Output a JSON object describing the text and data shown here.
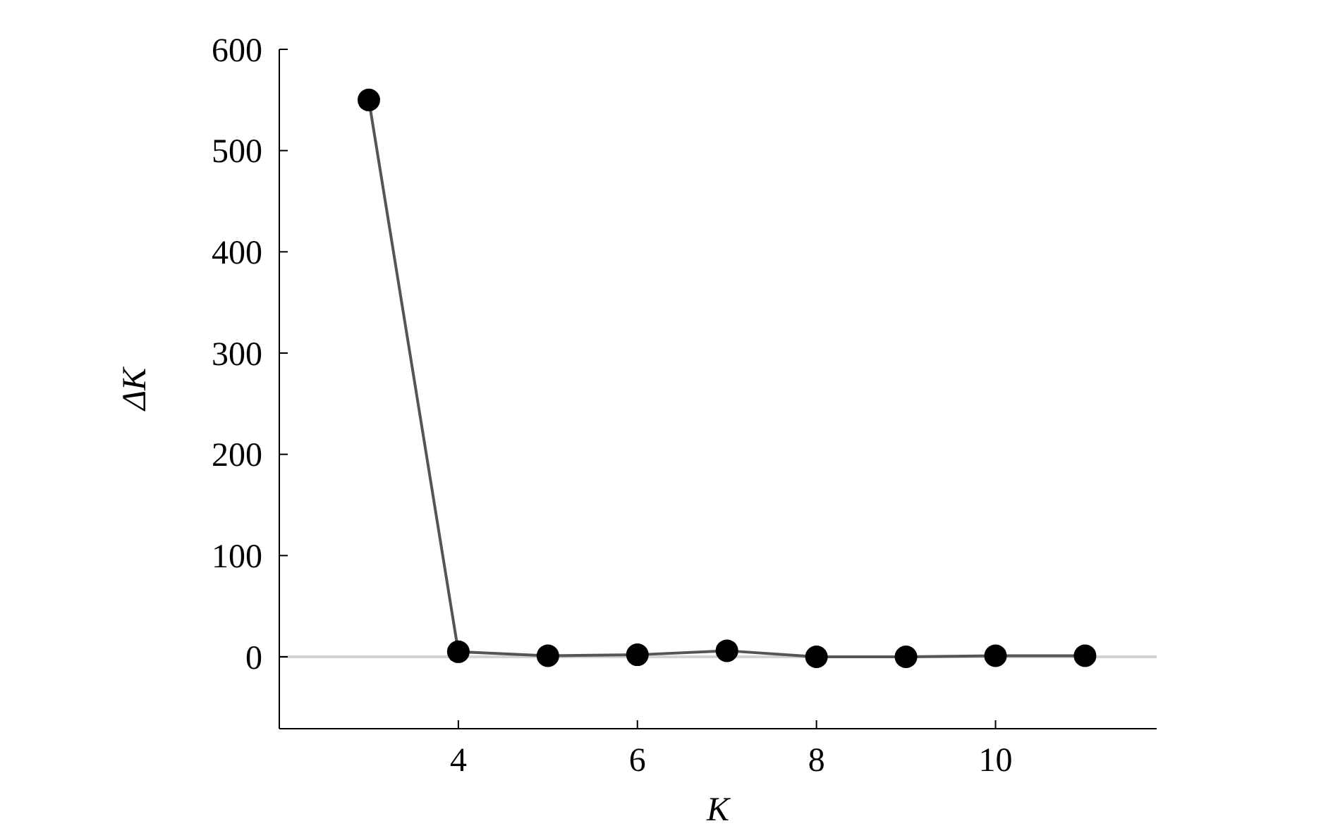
{
  "chart_data": {
    "type": "line",
    "xlabel": "K",
    "ylabel": "ΔK",
    "x": [
      3,
      4,
      5,
      6,
      7,
      8,
      9,
      10,
      11
    ],
    "series": [
      {
        "color": "#000000",
        "values": [
          550,
          5,
          1,
          2,
          6,
          0,
          0,
          1,
          1
        ]
      }
    ],
    "xlim": [
      2,
      11.8
    ],
    "xticks": [
      4,
      6,
      8,
      10
    ],
    "ylim": [
      -71,
      600
    ],
    "yticks": [
      0,
      100,
      200,
      300,
      400,
      500,
      600
    ],
    "ref_lines": [
      {
        "axis": "y",
        "value": 0,
        "color": "#d3d3d3"
      }
    ],
    "marker": "circle",
    "line_style": "solid",
    "grid": false
  }
}
